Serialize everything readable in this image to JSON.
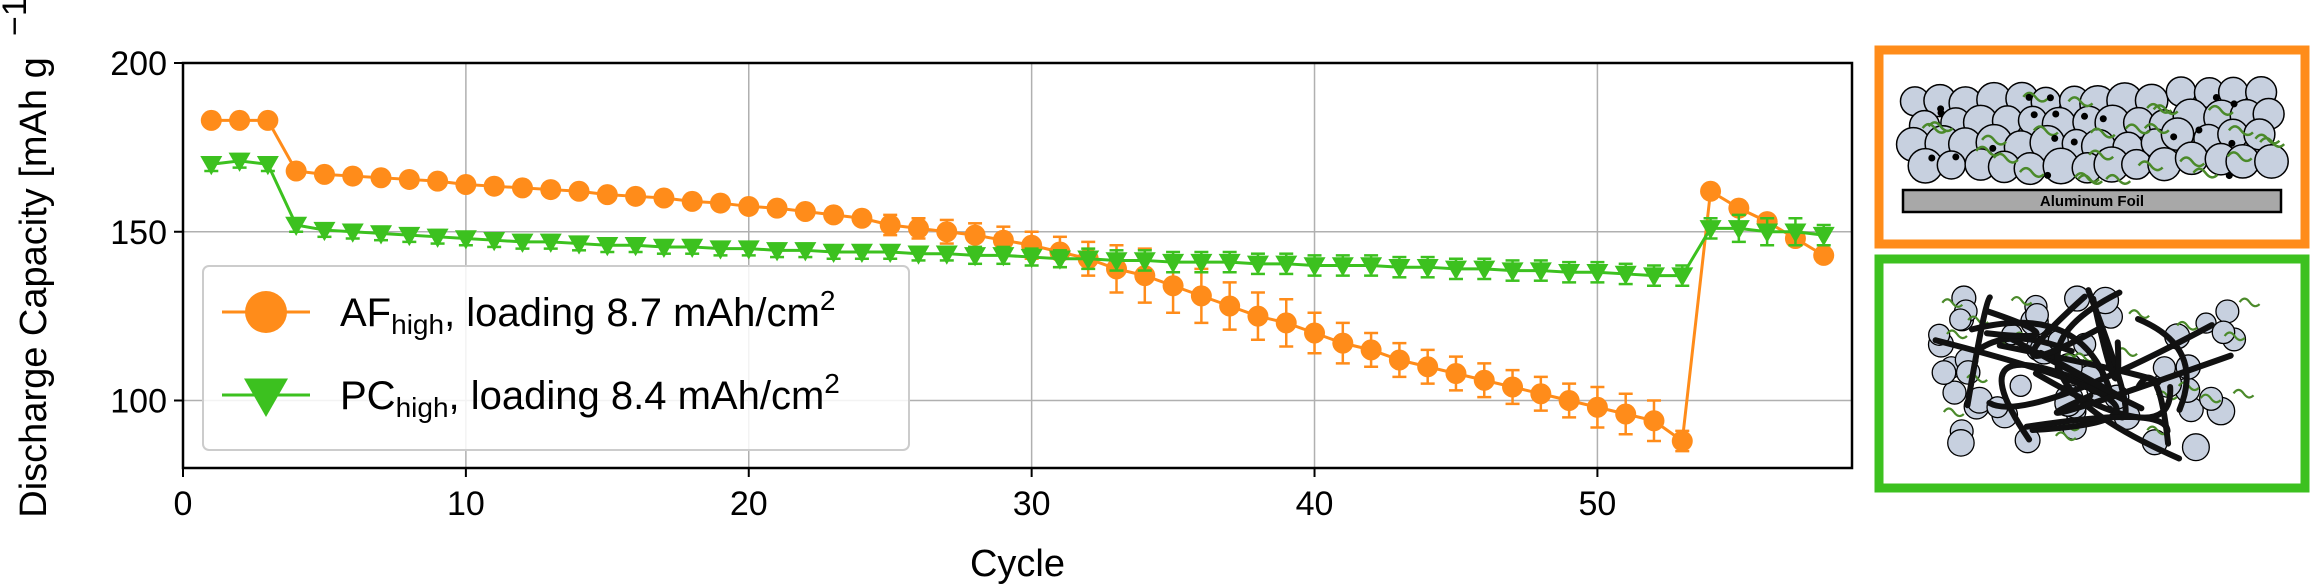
{
  "chart_data": {
    "type": "line",
    "title": "",
    "xlabel": "Cycle",
    "ylabel": "Discharge Capacity [mAh g",
    "ylabel_superscript": "−1",
    "xlim": [
      0,
      59
    ],
    "ylim": [
      80,
      200
    ],
    "xticks": [
      0,
      10,
      20,
      30,
      40,
      50
    ],
    "yticks": [
      100,
      150,
      200
    ],
    "grid": true,
    "legend_position": "lower-left",
    "series": [
      {
        "name": "AF",
        "name_subscript": "high",
        "name_suffix": ", loading 8.7 mAh/cm",
        "name_superscript": "2",
        "color": "#ff8c1a",
        "marker": "circle",
        "x": [
          1,
          2,
          3,
          4,
          5,
          6,
          7,
          8,
          9,
          10,
          11,
          12,
          13,
          14,
          15,
          16,
          17,
          18,
          19,
          20,
          21,
          22,
          23,
          24,
          25,
          26,
          27,
          28,
          29,
          30,
          31,
          32,
          33,
          34,
          35,
          36,
          37,
          38,
          39,
          40,
          41,
          42,
          43,
          44,
          45,
          46,
          47,
          48,
          49,
          50,
          51,
          52,
          53,
          54,
          55,
          56,
          57,
          58
        ],
        "y": [
          183,
          183,
          183,
          168,
          167,
          166.5,
          166,
          165.5,
          165,
          164,
          163.5,
          163,
          162.5,
          162,
          161,
          160.5,
          160,
          159,
          158.5,
          157.5,
          157,
          156,
          155,
          154,
          152,
          151,
          150,
          149,
          147.5,
          146,
          144,
          142,
          139,
          137,
          134,
          131,
          128,
          125,
          123,
          120,
          117,
          115,
          112,
          110,
          108,
          106,
          104,
          102,
          100,
          98,
          96,
          94,
          88,
          162,
          157,
          153,
          148,
          143
        ],
        "yerr": [
          1,
          1,
          1,
          1,
          1,
          1,
          1,
          1,
          1,
          1,
          1,
          1,
          1,
          1,
          1,
          1,
          1,
          1,
          1.5,
          1.5,
          1.5,
          2,
          2,
          2,
          3,
          3,
          3.5,
          3.5,
          4,
          4,
          4.5,
          5,
          7,
          8,
          8,
          8,
          7,
          7,
          7,
          6,
          6,
          5,
          5,
          5,
          5,
          5,
          5,
          5,
          5,
          6,
          6,
          6,
          3,
          2,
          2,
          2,
          2,
          2
        ]
      },
      {
        "name": "PC",
        "name_subscript": "high",
        "name_suffix": ", loading 8.4 mAh/cm",
        "name_superscript": "2",
        "color": "#3cc11f",
        "marker": "triangle-down",
        "x": [
          1,
          2,
          3,
          4,
          5,
          6,
          7,
          8,
          9,
          10,
          11,
          12,
          13,
          14,
          15,
          16,
          17,
          18,
          19,
          20,
          21,
          22,
          23,
          24,
          25,
          26,
          27,
          28,
          29,
          30,
          31,
          32,
          33,
          34,
          35,
          36,
          37,
          38,
          39,
          40,
          41,
          42,
          43,
          44,
          45,
          46,
          47,
          48,
          49,
          50,
          51,
          52,
          53,
          54,
          55,
          56,
          57,
          58
        ],
        "y": [
          170,
          171,
          170,
          152,
          150.5,
          150,
          149.5,
          149,
          148.5,
          148,
          147.5,
          147,
          147,
          146.5,
          146,
          146,
          145.5,
          145.5,
          145,
          145,
          144.5,
          144.5,
          144,
          144,
          144,
          143.5,
          143.5,
          143,
          143,
          142.5,
          142,
          142,
          141.5,
          141.5,
          141,
          141,
          141,
          140.5,
          140.5,
          140,
          140,
          140,
          139.5,
          139.5,
          139,
          139,
          138.5,
          138.5,
          138,
          138,
          137.5,
          137,
          137,
          151,
          151,
          150,
          150,
          149
        ],
        "yerr": [
          2,
          2,
          2,
          2,
          2,
          2,
          2,
          2,
          2,
          2,
          2,
          2,
          2,
          2,
          2,
          2,
          2,
          2,
          2,
          2,
          2,
          2,
          2,
          2,
          2,
          2,
          2,
          2.5,
          2.5,
          2.5,
          2.5,
          3,
          3,
          3,
          3,
          3,
          3,
          3,
          3,
          3,
          3,
          3,
          3,
          3,
          3,
          3,
          3,
          3,
          3,
          3,
          3,
          3,
          3,
          3,
          4,
          4,
          4,
          3
        ]
      }
    ]
  },
  "schematics": {
    "top": {
      "border_color": "#ff8c1a",
      "foil_label": "Aluminum Foil"
    },
    "bottom": {
      "border_color": "#3cc11f"
    }
  }
}
